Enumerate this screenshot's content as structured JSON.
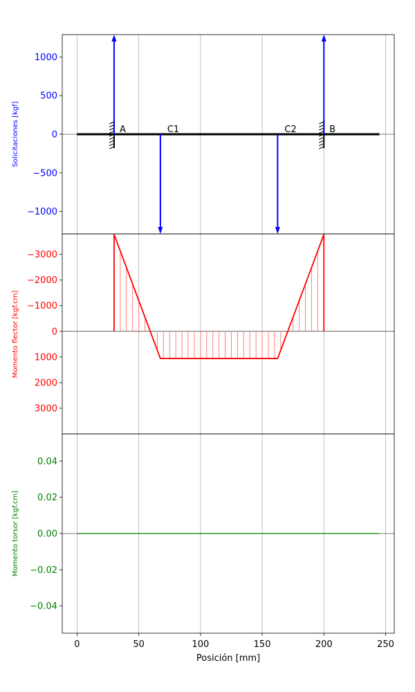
{
  "colors": {
    "forces": "#0000ff",
    "bending": "#ff0000",
    "torsion": "#008000",
    "beam": "#000000",
    "grid": "#b0b0b0",
    "hatch": "#ff8080"
  },
  "chart_data": [
    {
      "type": "line",
      "panel": "forces",
      "ylabel": "Solicitaciones [kgf]",
      "xlim": [
        -12,
        257
      ],
      "ylim": [
        -1290,
        1290
      ],
      "yticks": [
        -1000,
        -500,
        0,
        500,
        1000
      ],
      "ytick_labels": [
        "−1000",
        "−500",
        "0",
        "500",
        "1000"
      ],
      "grid": true,
      "beam": {
        "x_start": 0,
        "x_end": 245
      },
      "supports": [
        {
          "label": "A",
          "x": 30
        },
        {
          "label": "B",
          "x": 200
        }
      ],
      "forces": [
        {
          "label": "",
          "x": 30,
          "value": 1290
        },
        {
          "label": "C1",
          "x": 67.5,
          "value": -1290
        },
        {
          "label": "C2",
          "x": 162.5,
          "value": -1290
        },
        {
          "label": "",
          "x": 200,
          "value": 1290
        }
      ]
    },
    {
      "type": "area",
      "panel": "bending",
      "ylabel": "Momento flector [kgf.cm]",
      "inverted_y": true,
      "ylim": [
        -3800,
        4000
      ],
      "yticks": [
        -3000,
        -2000,
        -1000,
        0,
        1000,
        2000,
        3000
      ],
      "ytick_labels": [
        "−3000",
        "−2000",
        "−1000",
        "0",
        "1000",
        "2000",
        "3000"
      ],
      "grid": true,
      "x": [
        30,
        30,
        67.5,
        162.5,
        200,
        200
      ],
      "y": [
        0,
        -3780,
        1060,
        1060,
        -3780,
        0
      ],
      "hatch_spacing": 5
    },
    {
      "type": "line",
      "panel": "torsion",
      "ylabel": "Momento torsor [kgf.cm]",
      "xlabel": "Posición [mm]",
      "ylim": [
        -0.055,
        0.055
      ],
      "yticks": [
        -0.04,
        -0.02,
        0,
        0.02,
        0.04
      ],
      "ytick_labels": [
        "−0.04",
        "−0.02",
        "0.00",
        "0.02",
        "0.04"
      ],
      "xticks": [
        0,
        50,
        100,
        150,
        200,
        250
      ],
      "xtick_labels": [
        "0",
        "50",
        "100",
        "150",
        "200",
        "250"
      ],
      "grid": true,
      "x": [
        0,
        245
      ],
      "y": [
        0,
        0
      ]
    }
  ]
}
